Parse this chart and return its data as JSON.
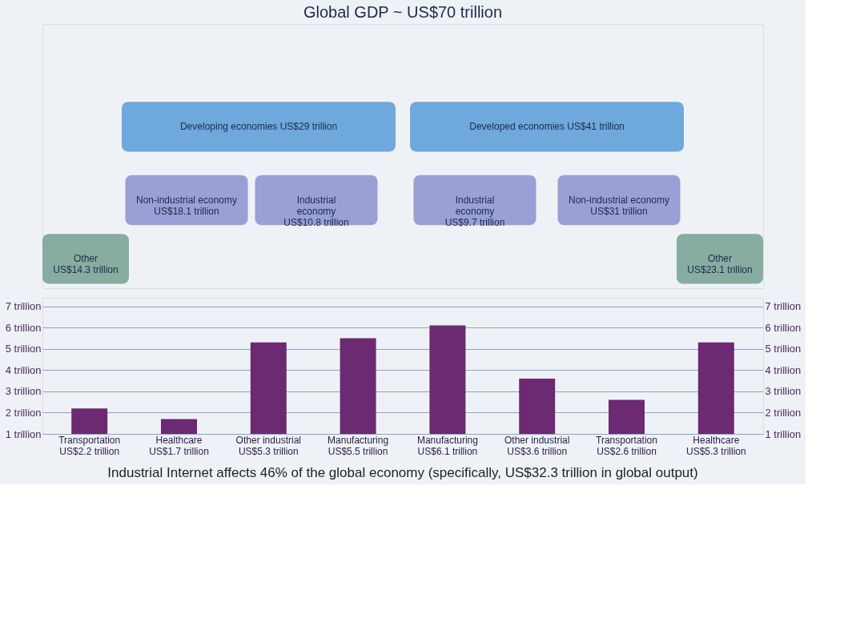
{
  "chart_data": [
    {
      "type": "other",
      "title": "Global GDP ~ US$70 trillion",
      "annotations": [
        "Developing economies US$29 trillion",
        "Developed economies US$41 trillion",
        "Non-industrial economy\nUS$18.1 trillion",
        "Industrial\neconomy\nUS$10.8 trillion",
        "Industrial\neconomy\nUS$9.7 trillion",
        "Non-industrial economy\nUS$31 trillion",
        "Other\nUS$14.3 trillion",
        "Other\nUS$23.1 trillion"
      ]
    },
    {
      "type": "bar",
      "categories": [
        "Transportation\nUS$2.2 trillion",
        "Healthcare\nUS$1.7 trillion",
        "Other industrial\nUS$5.3 trillion",
        "Manufacturing\nUS$5.5 trillion",
        "Manufacturing\nUS$6.1 trillion",
        "Other industrial\nUS$3.6 trillion",
        "Transportation\nUS$2.6 trillion",
        "Healthcare\nUS$5.3 trillion"
      ],
      "series": [
        {
          "color": "#6b2a72",
          "values": [
            2.2,
            1.7,
            5.3,
            5.5,
            6.1,
            3.6,
            2.6,
            5.3
          ]
        }
      ],
      "ylim": [
        1,
        7.4
      ],
      "yticks": [
        {
          "value": 1,
          "label": "1 trillion"
        },
        {
          "value": 2,
          "label": "2 trillion"
        },
        {
          "value": 3,
          "label": "3 trillion"
        },
        {
          "value": 4,
          "label": "4 trillion"
        },
        {
          "value": 5,
          "label": "5 trillion"
        },
        {
          "value": 6,
          "label": "6 trillion"
        },
        {
          "value": 7,
          "label": "7 trillion"
        }
      ],
      "y2lim": [
        1,
        7.4
      ],
      "y2ticks": [
        {
          "value": 1,
          "label": "1 trillion"
        },
        {
          "value": 2,
          "label": "2 trillion"
        },
        {
          "value": 3,
          "label": "3 trillion"
        },
        {
          "value": 4,
          "label": "4 trillion"
        },
        {
          "value": 5,
          "label": "5 trillion"
        },
        {
          "value": 6,
          "label": "6 trillion"
        },
        {
          "value": 7,
          "label": "7 trillion"
        }
      ],
      "grid": "y",
      "annotations": [
        "Industrial Internet affects 46% of the global economy (specifically, US$32.3 trillion in global output)"
      ]
    }
  ]
}
